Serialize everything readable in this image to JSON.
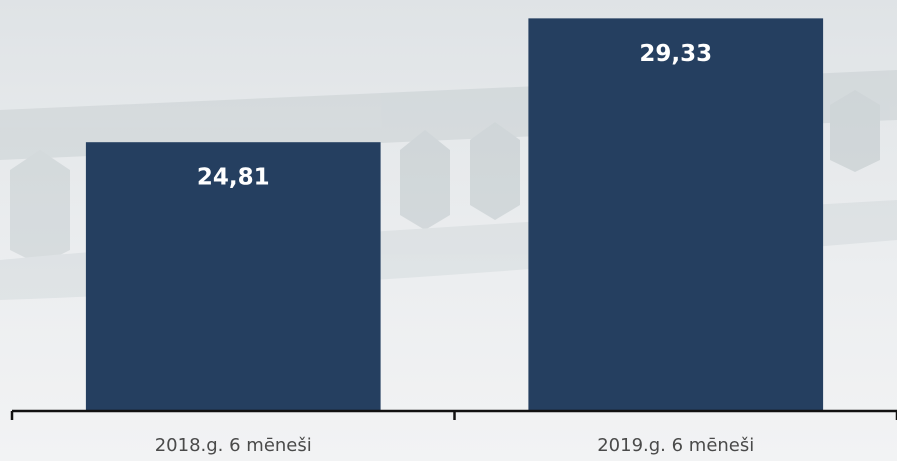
{
  "chart_data": {
    "type": "bar",
    "categories": [
      "2018.g. 6 mēneši",
      "2019.g. 6 mēneši"
    ],
    "values": [
      24.81,
      29.33
    ],
    "value_labels": [
      "24,81",
      "29,33"
    ],
    "color": "#253f60",
    "ylim": [
      15,
      30
    ]
  }
}
